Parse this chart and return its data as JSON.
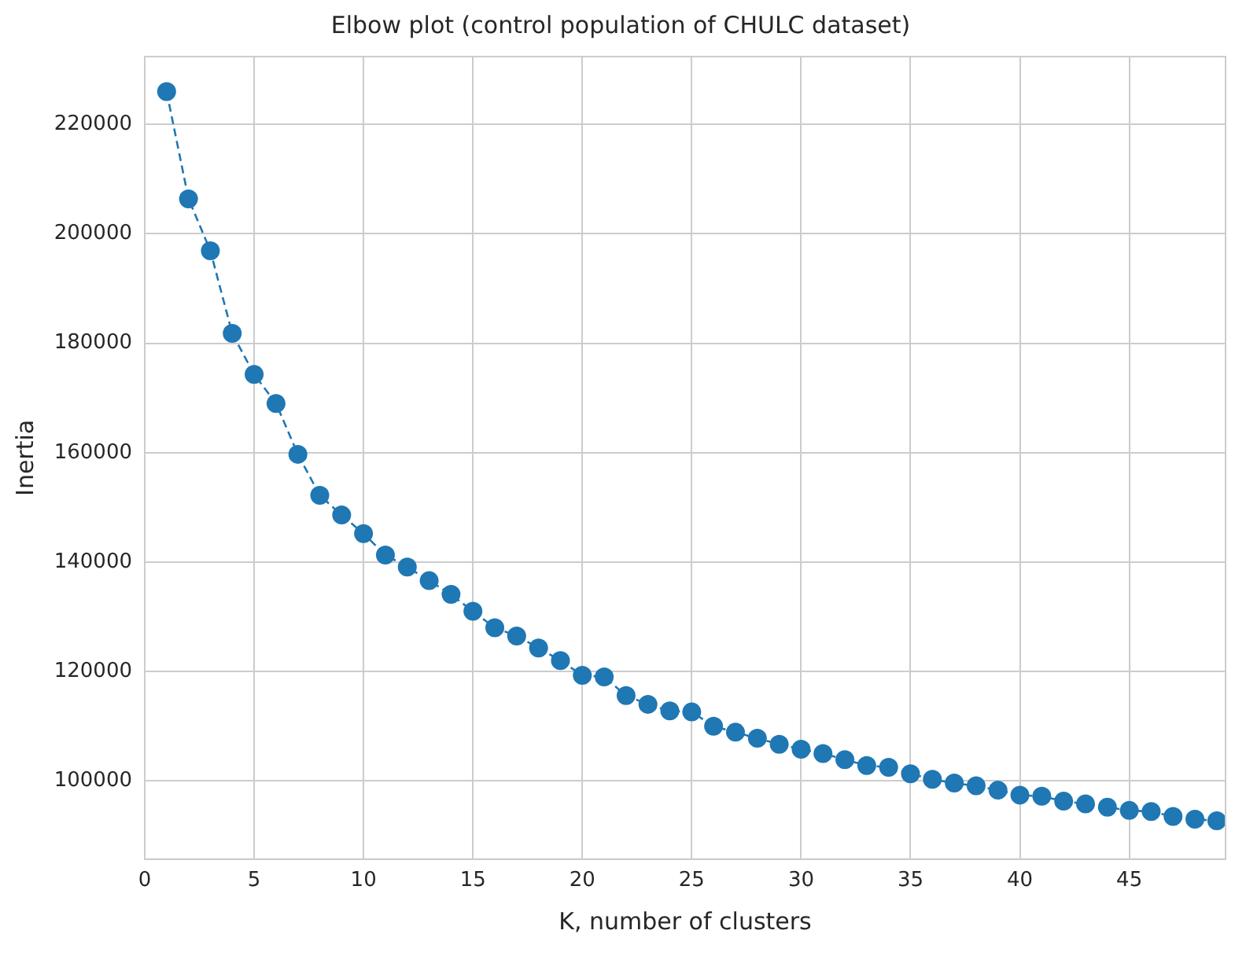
{
  "chart_data": {
    "type": "line",
    "title": "Elbow plot (control population of CHULC dataset)",
    "xlabel": "K, number of clusters",
    "ylabel": "Inertia",
    "x": [
      1,
      2,
      3,
      4,
      5,
      6,
      7,
      8,
      9,
      10,
      11,
      12,
      13,
      14,
      15,
      16,
      17,
      18,
      19,
      20,
      21,
      22,
      23,
      24,
      25,
      26,
      27,
      28,
      29,
      30,
      31,
      32,
      33,
      34,
      35,
      36,
      37,
      38,
      39,
      40,
      41,
      42,
      43,
      44,
      45,
      46,
      47,
      48,
      49
    ],
    "series": [
      {
        "color": "#1f77b4",
        "values": [
          226000,
          206400,
          196900,
          181800,
          174300,
          169000,
          159700,
          152200,
          148600,
          145200,
          141300,
          139100,
          136600,
          134100,
          131000,
          128000,
          126500,
          124300,
          122000,
          119300,
          119000,
          115600,
          114000,
          112800,
          112600,
          110000,
          108900,
          107800,
          106700,
          105800,
          105000,
          103900,
          102800,
          102500,
          101300,
          100300,
          99600,
          99100,
          98300,
          97400,
          97200,
          96300,
          95800,
          95200,
          94600,
          94400,
          93500,
          93000,
          92700
        ]
      }
    ],
    "xlim": [
      0,
      49.4
    ],
    "xticks": [
      0,
      5,
      10,
      15,
      20,
      25,
      30,
      35,
      40,
      45
    ],
    "ylim": [
      85700,
      232400
    ],
    "yticks": [
      100000,
      120000,
      140000,
      160000,
      180000,
      200000,
      220000
    ],
    "grid": true,
    "marker": "circle",
    "line_style": "dashed",
    "legend": false
  }
}
